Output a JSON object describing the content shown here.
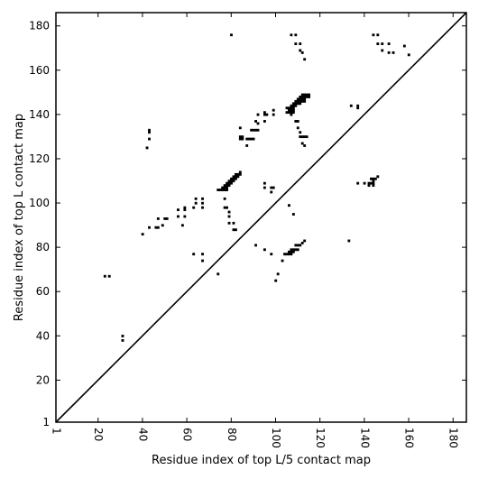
{
  "chart_data": {
    "type": "scatter",
    "title": "",
    "xlabel": "Residue index of top L/5 contact map",
    "ylabel": "Residue index of top L contact map",
    "xlim": [
      1,
      186
    ],
    "ylim": [
      1,
      186
    ],
    "xticks": [
      1,
      20,
      40,
      60,
      80,
      100,
      120,
      140,
      160,
      180
    ],
    "yticks": [
      1,
      20,
      40,
      60,
      80,
      100,
      120,
      140,
      160,
      180
    ],
    "grid": false,
    "diagonal": true,
    "marker": "square",
    "marker_color": "#000000",
    "series": [
      {
        "points": [
          [
            23,
            67
          ],
          [
            25,
            67
          ],
          [
            31,
            38
          ],
          [
            31,
            40
          ],
          [
            40,
            86
          ],
          [
            42,
            125
          ],
          [
            43,
            89
          ],
          [
            43,
            129
          ],
          [
            43,
            132
          ],
          [
            43,
            133
          ],
          [
            46,
            89
          ],
          [
            47,
            89
          ],
          [
            47,
            93
          ],
          [
            49,
            90
          ],
          [
            50,
            93
          ],
          [
            51,
            93
          ],
          [
            56,
            94
          ],
          [
            56,
            97
          ],
          [
            58,
            90
          ],
          [
            59,
            94
          ],
          [
            59,
            97
          ],
          [
            59,
            98
          ],
          [
            63,
            77
          ],
          [
            63,
            98
          ],
          [
            64,
            100
          ],
          [
            64,
            102
          ],
          [
            67,
            74
          ],
          [
            67,
            77
          ],
          [
            67,
            98
          ],
          [
            67,
            100
          ],
          [
            67,
            102
          ],
          [
            74,
            68
          ],
          [
            74,
            106
          ],
          [
            75,
            106
          ],
          [
            76,
            106
          ],
          [
            76,
            107
          ],
          [
            77,
            98
          ],
          [
            77,
            102
          ],
          [
            77,
            106
          ],
          [
            77,
            107
          ],
          [
            77,
            108
          ],
          [
            78,
            98
          ],
          [
            78,
            106
          ],
          [
            78,
            107
          ],
          [
            78,
            108
          ],
          [
            78,
            109
          ],
          [
            79,
            91
          ],
          [
            79,
            94
          ],
          [
            79,
            96
          ],
          [
            79,
            108
          ],
          [
            79,
            109
          ],
          [
            79,
            110
          ],
          [
            80,
            109
          ],
          [
            80,
            110
          ],
          [
            80,
            111
          ],
          [
            80,
            176
          ],
          [
            81,
            88
          ],
          [
            81,
            91
          ],
          [
            81,
            110
          ],
          [
            81,
            111
          ],
          [
            81,
            112
          ],
          [
            82,
            88
          ],
          [
            82,
            111
          ],
          [
            82,
            112
          ],
          [
            82,
            113
          ],
          [
            83,
            112
          ],
          [
            83,
            113
          ],
          [
            84,
            113
          ],
          [
            84,
            114
          ],
          [
            84,
            129
          ],
          [
            84,
            130
          ],
          [
            84,
            134
          ],
          [
            85,
            129
          ],
          [
            85,
            130
          ],
          [
            87,
            126
          ],
          [
            87,
            129
          ],
          [
            88,
            129
          ],
          [
            89,
            129
          ],
          [
            89,
            133
          ],
          [
            90,
            129
          ],
          [
            90,
            133
          ],
          [
            91,
            81
          ],
          [
            91,
            133
          ],
          [
            91,
            137
          ],
          [
            92,
            133
          ],
          [
            92,
            136
          ],
          [
            92,
            140
          ],
          [
            95,
            79
          ],
          [
            95,
            107
          ],
          [
            95,
            109
          ],
          [
            95,
            137
          ],
          [
            95,
            140
          ],
          [
            95,
            141
          ],
          [
            96,
            140
          ],
          [
            98,
            77
          ],
          [
            98,
            105
          ],
          [
            98,
            107
          ],
          [
            99,
            107
          ],
          [
            99,
            140
          ],
          [
            99,
            142
          ],
          [
            100,
            65
          ],
          [
            101,
            68
          ],
          [
            103,
            74
          ],
          [
            104,
            77
          ],
          [
            105,
            77
          ],
          [
            105,
            141
          ],
          [
            105,
            143
          ],
          [
            106,
            77
          ],
          [
            106,
            78
          ],
          [
            106,
            99
          ],
          [
            106,
            141
          ],
          [
            106,
            142
          ],
          [
            106,
            143
          ],
          [
            107,
            77
          ],
          [
            107,
            78
          ],
          [
            107,
            79
          ],
          [
            107,
            140
          ],
          [
            107,
            141
          ],
          [
            107,
            142
          ],
          [
            107,
            143
          ],
          [
            107,
            144
          ],
          [
            107,
            176
          ],
          [
            108,
            78
          ],
          [
            108,
            79
          ],
          [
            108,
            95
          ],
          [
            108,
            141
          ],
          [
            108,
            142
          ],
          [
            108,
            143
          ],
          [
            108,
            144
          ],
          [
            108,
            145
          ],
          [
            109,
            79
          ],
          [
            109,
            81
          ],
          [
            109,
            137
          ],
          [
            109,
            144
          ],
          [
            109,
            145
          ],
          [
            109,
            146
          ],
          [
            109,
            172
          ],
          [
            109,
            176
          ],
          [
            110,
            79
          ],
          [
            110,
            81
          ],
          [
            110,
            134
          ],
          [
            110,
            137
          ],
          [
            110,
            145
          ],
          [
            110,
            146
          ],
          [
            110,
            147
          ],
          [
            111,
            81
          ],
          [
            111,
            130
          ],
          [
            111,
            132
          ],
          [
            111,
            145
          ],
          [
            111,
            146
          ],
          [
            111,
            147
          ],
          [
            111,
            148
          ],
          [
            111,
            169
          ],
          [
            111,
            172
          ],
          [
            112,
            82
          ],
          [
            112,
            127
          ],
          [
            112,
            130
          ],
          [
            112,
            146
          ],
          [
            112,
            147
          ],
          [
            112,
            148
          ],
          [
            112,
            149
          ],
          [
            112,
            168
          ],
          [
            113,
            83
          ],
          [
            113,
            126
          ],
          [
            113,
            130
          ],
          [
            113,
            146
          ],
          [
            113,
            147
          ],
          [
            113,
            148
          ],
          [
            113,
            149
          ],
          [
            113,
            165
          ],
          [
            114,
            130
          ],
          [
            114,
            148
          ],
          [
            114,
            149
          ],
          [
            115,
            148
          ],
          [
            115,
            149
          ],
          [
            133,
            83
          ],
          [
            134,
            144
          ],
          [
            137,
            109
          ],
          [
            137,
            143
          ],
          [
            137,
            144
          ],
          [
            140,
            109
          ],
          [
            142,
            108
          ],
          [
            142,
            109
          ],
          [
            143,
            109
          ],
          [
            143,
            111
          ],
          [
            144,
            108
          ],
          [
            144,
            109
          ],
          [
            144,
            110
          ],
          [
            144,
            111
          ],
          [
            144,
            176
          ],
          [
            145,
            111
          ],
          [
            146,
            112
          ],
          [
            146,
            176
          ],
          [
            146,
            172
          ],
          [
            148,
            169
          ],
          [
            148,
            172
          ],
          [
            151,
            168
          ],
          [
            151,
            172
          ],
          [
            153,
            168
          ],
          [
            158,
            171
          ],
          [
            160,
            167
          ]
        ]
      }
    ]
  }
}
